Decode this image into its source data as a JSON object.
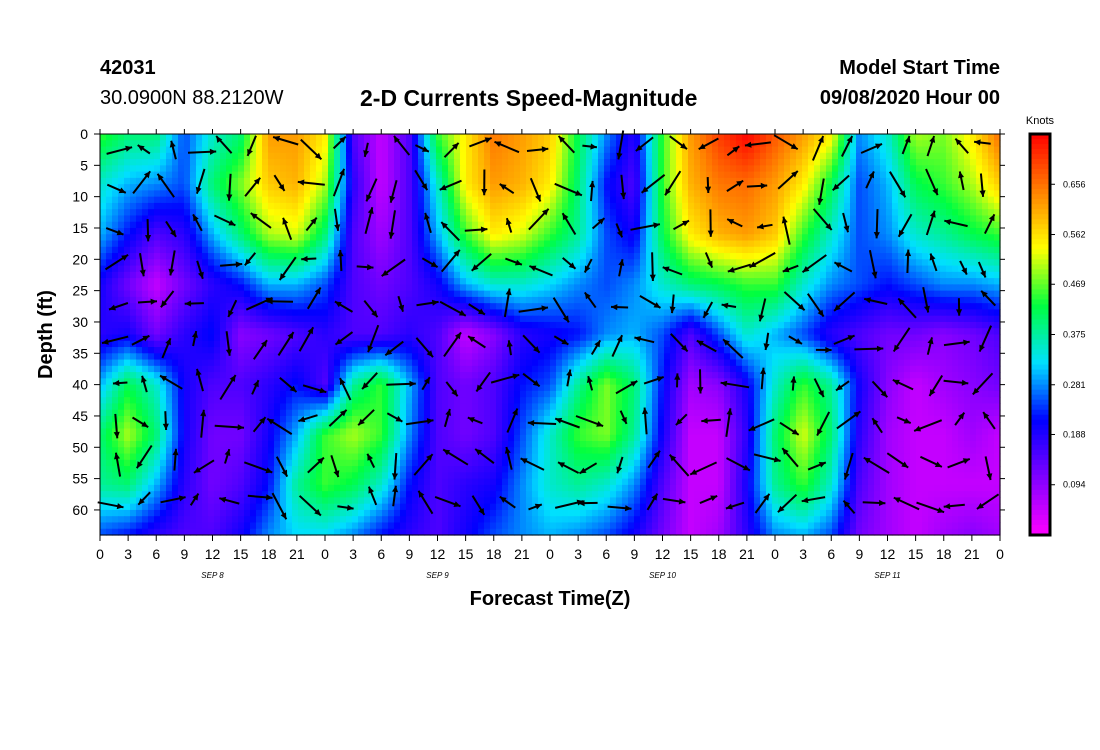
{
  "header": {
    "station_id": "42031",
    "coordinates": "30.0900N 88.2120W",
    "title": "2-D Currents Speed-Magnitude",
    "model_start_label": "Model Start Time",
    "model_start_value": "09/08/2020 Hour 00"
  },
  "chart_data": {
    "type": "heatmap",
    "title": "2-D Currents Speed-Magnitude",
    "xlabel": "Forecast Time(Z)",
    "ylabel": "Depth (ft)",
    "x_tick_labels": [
      "0",
      "3",
      "6",
      "9",
      "12",
      "15",
      "18",
      "21",
      "0",
      "3",
      "6",
      "9",
      "12",
      "15",
      "18",
      "21",
      "0",
      "3",
      "6",
      "9",
      "12",
      "15",
      "18",
      "21",
      "0",
      "3",
      "6",
      "9",
      "12",
      "15",
      "18",
      "21",
      "0"
    ],
    "x_range_hours": [
      0,
      96
    ],
    "date_labels": [
      {
        "label": "SEP 8",
        "hour": 12
      },
      {
        "label": "SEP 9",
        "hour": 36
      },
      {
        "label": "SEP 10",
        "hour": 60
      },
      {
        "label": "SEP 11",
        "hour": 84
      }
    ],
    "y_range_ft": [
      0,
      64
    ],
    "y_ticks": [
      0,
      5,
      10,
      15,
      20,
      25,
      30,
      35,
      40,
      45,
      50,
      55,
      60
    ],
    "colorbar": {
      "units": "Knots",
      "ticks": [
        0.094,
        0.188,
        0.281,
        0.375,
        0.469,
        0.562,
        0.656
      ],
      "range": [
        0.0,
        0.75
      ],
      "colors": [
        "#ff00ff",
        "#8000ff",
        "#0000ff",
        "#00e0ff",
        "#00ff40",
        "#ffff00",
        "#ff8000",
        "#ff0000"
      ]
    },
    "speed_grid": {
      "hours": [
        0,
        3,
        6,
        9,
        12,
        15,
        18,
        21,
        24,
        27,
        30,
        33,
        36,
        39,
        42,
        45,
        48,
        51,
        54,
        57,
        60,
        63,
        66,
        69,
        72,
        75,
        78,
        81,
        84,
        87,
        90,
        93,
        96
      ],
      "depths_ft": [
        0,
        8,
        16,
        24,
        32,
        40,
        48,
        56,
        64
      ],
      "values": [
        [
          0.45,
          0.4,
          0.4,
          0.25,
          0.35,
          0.4,
          0.62,
          0.62,
          0.55,
          0.15,
          0.05,
          0.15,
          0.45,
          0.55,
          0.65,
          0.62,
          0.58,
          0.42,
          0.28,
          0.18,
          0.45,
          0.62,
          0.7,
          0.75,
          0.68,
          0.62,
          0.55,
          0.28,
          0.35,
          0.5,
          0.48,
          0.55,
          0.66
        ],
        [
          0.35,
          0.3,
          0.28,
          0.25,
          0.4,
          0.48,
          0.58,
          0.6,
          0.5,
          0.18,
          0.05,
          0.15,
          0.35,
          0.55,
          0.62,
          0.6,
          0.55,
          0.4,
          0.22,
          0.15,
          0.45,
          0.6,
          0.65,
          0.66,
          0.62,
          0.55,
          0.42,
          0.25,
          0.3,
          0.42,
          0.45,
          0.5,
          0.58
        ],
        [
          0.3,
          0.22,
          0.15,
          0.18,
          0.3,
          0.4,
          0.5,
          0.52,
          0.4,
          0.15,
          0.08,
          0.15,
          0.3,
          0.45,
          0.55,
          0.52,
          0.45,
          0.38,
          0.25,
          0.2,
          0.42,
          0.55,
          0.6,
          0.62,
          0.58,
          0.45,
          0.35,
          0.25,
          0.28,
          0.35,
          0.38,
          0.42,
          0.45
        ],
        [
          0.2,
          0.12,
          0.05,
          0.12,
          0.18,
          0.22,
          0.3,
          0.3,
          0.25,
          0.15,
          0.12,
          0.15,
          0.2,
          0.3,
          0.35,
          0.35,
          0.32,
          0.28,
          0.25,
          0.28,
          0.35,
          0.4,
          0.42,
          0.45,
          0.45,
          0.35,
          0.28,
          0.25,
          0.22,
          0.25,
          0.28,
          0.28,
          0.3
        ],
        [
          0.18,
          0.2,
          0.12,
          0.18,
          0.22,
          0.1,
          0.12,
          0.15,
          0.18,
          0.15,
          0.15,
          0.18,
          0.15,
          0.05,
          0.1,
          0.18,
          0.2,
          0.22,
          0.28,
          0.3,
          0.25,
          0.15,
          0.25,
          0.35,
          0.3,
          0.25,
          0.18,
          0.15,
          0.12,
          0.12,
          0.1,
          0.12,
          0.15
        ],
        [
          0.3,
          0.42,
          0.35,
          0.2,
          0.15,
          0.15,
          0.18,
          0.22,
          0.15,
          0.38,
          0.45,
          0.3,
          0.15,
          0.12,
          0.15,
          0.22,
          0.25,
          0.38,
          0.48,
          0.4,
          0.22,
          0.08,
          0.1,
          0.2,
          0.35,
          0.45,
          0.38,
          0.2,
          0.1,
          0.05,
          0.08,
          0.1,
          0.12
        ],
        [
          0.4,
          0.5,
          0.4,
          0.2,
          0.12,
          0.12,
          0.2,
          0.3,
          0.45,
          0.5,
          0.45,
          0.28,
          0.15,
          0.12,
          0.15,
          0.25,
          0.35,
          0.45,
          0.48,
          0.38,
          0.2,
          0.05,
          0.05,
          0.18,
          0.4,
          0.52,
          0.4,
          0.18,
          0.08,
          0.05,
          0.05,
          0.08,
          0.05
        ],
        [
          0.38,
          0.4,
          0.3,
          0.18,
          0.12,
          0.15,
          0.22,
          0.38,
          0.45,
          0.42,
          0.35,
          0.22,
          0.15,
          0.18,
          0.2,
          0.28,
          0.35,
          0.38,
          0.35,
          0.28,
          0.15,
          0.05,
          0.05,
          0.2,
          0.38,
          0.45,
          0.35,
          0.15,
          0.08,
          0.05,
          0.05,
          0.05,
          0.05
        ],
        [
          0.25,
          0.22,
          0.18,
          0.15,
          0.15,
          0.2,
          0.28,
          0.32,
          0.32,
          0.28,
          0.22,
          0.18,
          0.15,
          0.2,
          0.25,
          0.28,
          0.3,
          0.28,
          0.25,
          0.2,
          0.12,
          0.05,
          0.08,
          0.18,
          0.28,
          0.3,
          0.25,
          0.12,
          0.08,
          0.05,
          0.08,
          0.1,
          0.08
        ]
      ]
    }
  }
}
